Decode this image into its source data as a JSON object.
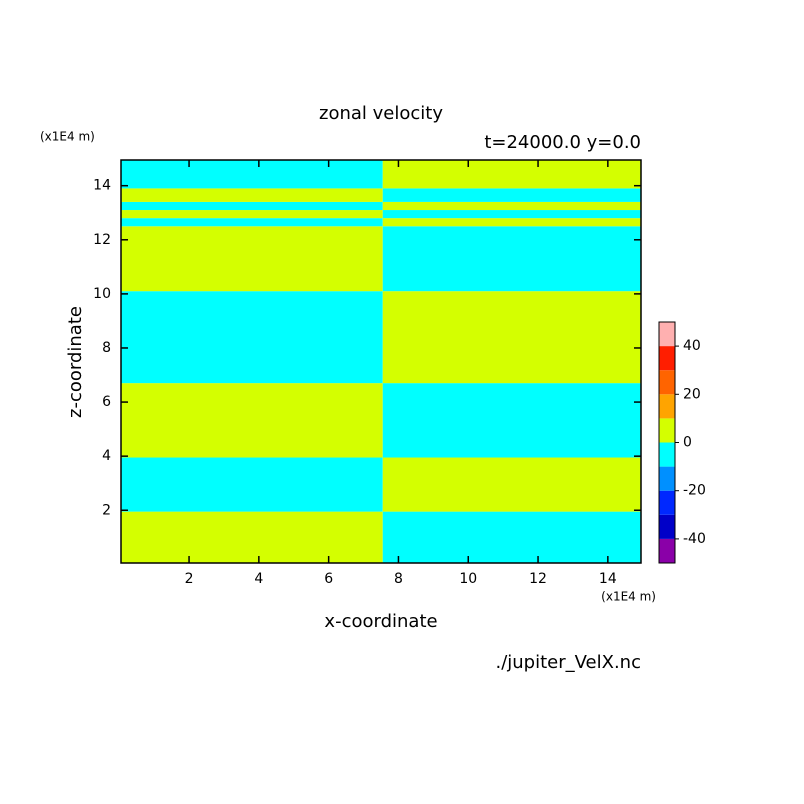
{
  "chart_data": {
    "type": "contour",
    "title": "zonal velocity",
    "subtitle": "t=24000.0 y=0.0",
    "xlabel": "x-coordinate",
    "ylabel": "z-coordinate",
    "x_unit": "(x1E4 m)",
    "y_unit": "(x1E4 m)",
    "source": "./jupiter_VelX.nc",
    "xlim": [
      0.05,
      14.95
    ],
    "ylim": [
      0.05,
      14.95
    ],
    "xticks": [
      2,
      4,
      6,
      8,
      10,
      12,
      14
    ],
    "yticks": [
      2,
      4,
      6,
      8,
      10,
      12,
      14
    ],
    "x_edges": [
      0.05,
      7.55,
      14.95
    ],
    "z_edges": [
      0.05,
      1.95,
      3.95,
      6.7,
      10.1,
      12.5,
      12.8,
      13.1,
      13.4,
      13.9,
      14.95
    ],
    "values": [
      [
        5,
        -5
      ],
      [
        -5,
        5
      ],
      [
        5,
        -5
      ],
      [
        -5,
        5
      ],
      [
        5,
        -5
      ],
      [
        -5,
        5
      ],
      [
        5,
        -5
      ],
      [
        -5,
        5
      ],
      [
        5,
        -5
      ],
      [
        -5,
        5
      ]
    ],
    "levels": [
      -50,
      -40,
      -30,
      -20,
      -10,
      0,
      10,
      20,
      30,
      40,
      50
    ],
    "colors": [
      "#8a00a8",
      "#0000c8",
      "#0028ff",
      "#0090ff",
      "#00ffff",
      "#d4ff00",
      "#ffa400",
      "#ff6400",
      "#ff1e00",
      "#ffb0b0"
    ],
    "colorbar_ticks": [
      -40,
      -20,
      0,
      20,
      40
    ]
  }
}
